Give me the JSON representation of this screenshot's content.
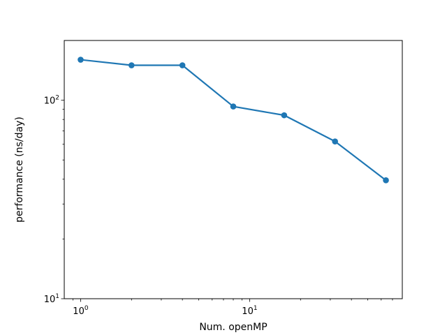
{
  "chart_data": {
    "type": "line",
    "title": "",
    "xlabel": "Num. openMP",
    "ylabel": "performance (ns/day)",
    "xscale": "log",
    "yscale": "log",
    "xlim": [
      0.8,
      80
    ],
    "ylim": [
      10,
      200
    ],
    "grid": false,
    "x_ticks": [
      {
        "value": 1,
        "base": "10",
        "exp": "0"
      },
      {
        "value": 10,
        "base": "10",
        "exp": "1"
      }
    ],
    "y_ticks": [
      {
        "value": 10,
        "base": "10",
        "exp": "1"
      },
      {
        "value": 100,
        "base": "10",
        "exp": "2"
      }
    ],
    "series": [
      {
        "color": "#1f77b4",
        "marker": "circle",
        "x": [
          1,
          2,
          4,
          8,
          16,
          32,
          64
        ],
        "y": [
          160,
          150,
          150,
          93,
          84,
          62,
          39.5
        ]
      }
    ]
  }
}
